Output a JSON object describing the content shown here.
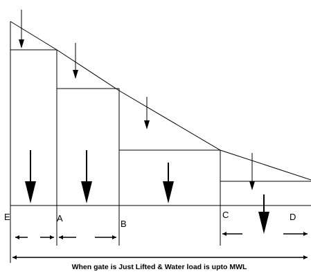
{
  "points": {
    "E": "E",
    "A": "A",
    "B": "B",
    "C": "C",
    "D": "D"
  },
  "caption": "When gate is Just Lifted & Water load is upto MWL"
}
